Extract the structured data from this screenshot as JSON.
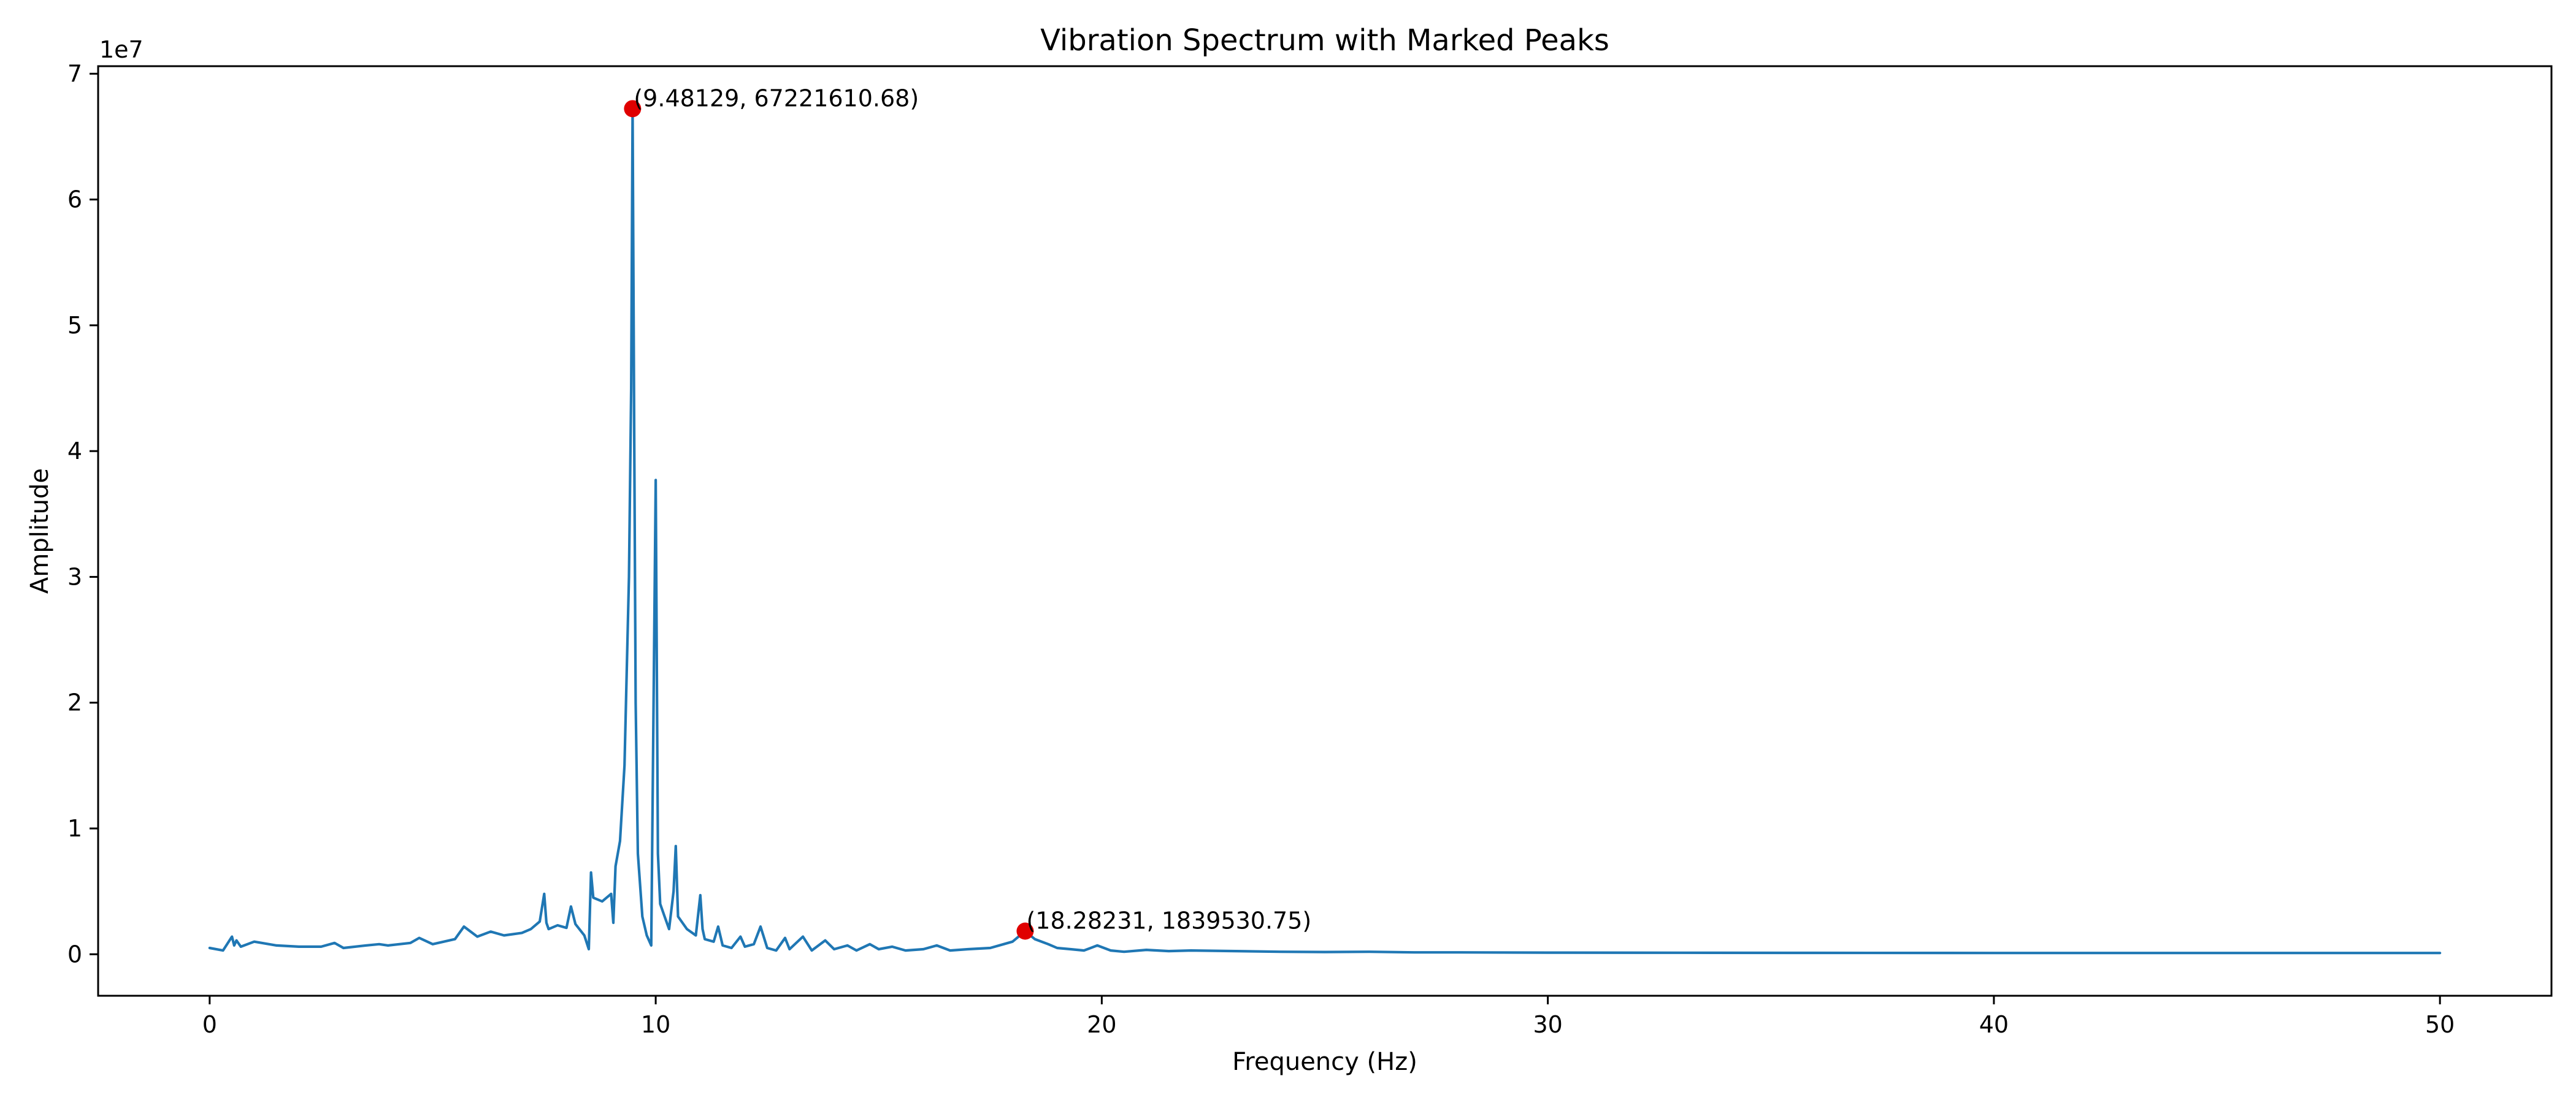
{
  "chart_data": {
    "type": "line",
    "title": "Vibration Spectrum with Marked Peaks",
    "xlabel": "Frequency (Hz)",
    "ylabel": "Amplitude",
    "xlim": [
      -2.5,
      52.5
    ],
    "ylim": [
      -3300000,
      70600000
    ],
    "y_offset_text": "1e7",
    "y_scale": 10000000,
    "x_ticks": [
      0,
      10,
      20,
      30,
      40,
      50
    ],
    "y_ticks": [
      0,
      10000000,
      20000000,
      30000000,
      40000000,
      50000000,
      60000000,
      70000000
    ],
    "x_tick_labels": [
      "0",
      "10",
      "20",
      "30",
      "40",
      "50"
    ],
    "y_tick_labels": [
      "0",
      "1",
      "2",
      "3",
      "4",
      "5",
      "6",
      "7"
    ],
    "grid": false,
    "line_color": "#1f77b4",
    "marker_color": "#e00000",
    "series": [
      {
        "x": [
          0,
          0.3,
          0.5,
          0.55,
          0.6,
          0.7,
          1.0,
          1.5,
          2.0,
          2.5,
          2.8,
          3.0,
          3.5,
          3.8,
          4.0,
          4.5,
          4.7,
          5.0,
          5.5,
          5.7,
          6.0,
          6.3,
          6.6,
          7.0,
          7.2,
          7.4,
          7.5,
          7.55,
          7.6,
          7.8,
          8.0,
          8.1,
          8.2,
          8.4,
          8.5,
          8.55,
          8.6,
          8.8,
          9.0,
          9.05,
          9.1,
          9.2,
          9.3,
          9.4,
          9.45,
          9.48129,
          9.52,
          9.55,
          9.6,
          9.7,
          9.8,
          9.9,
          10.0,
          10.05,
          10.1,
          10.2,
          10.3,
          10.4,
          10.45,
          10.5,
          10.7,
          10.9,
          11.0,
          11.05,
          11.1,
          11.3,
          11.4,
          11.5,
          11.7,
          11.9,
          12.0,
          12.2,
          12.35,
          12.5,
          12.7,
          12.9,
          13.0,
          13.3,
          13.5,
          13.8,
          14.0,
          14.3,
          14.5,
          14.8,
          15.0,
          15.3,
          15.6,
          16.0,
          16.3,
          16.6,
          17.0,
          17.5,
          17.8,
          18.0,
          18.28231,
          18.5,
          18.8,
          19.0,
          19.3,
          19.6,
          19.9,
          20.2,
          20.5,
          21.0,
          21.5,
          22.0,
          23.0,
          24.0,
          25.0,
          26.0,
          27.0,
          28.0,
          30.0,
          33.0,
          36.0,
          40.0,
          45.0,
          50.0
        ],
        "values": [
          500000,
          300000,
          1400000,
          700000,
          1100000,
          600000,
          1000000,
          700000,
          600000,
          600000,
          900000,
          500000,
          700000,
          800000,
          700000,
          900000,
          1300000,
          800000,
          1200000,
          2200000,
          1400000,
          1800000,
          1500000,
          1700000,
          2000000,
          2600000,
          4800000,
          2500000,
          2000000,
          2300000,
          2100000,
          3800000,
          2400000,
          1500000,
          400000,
          6500000,
          4500000,
          4200000,
          4800000,
          2500000,
          7000000,
          9000000,
          15000000,
          30000000,
          45000000,
          67221610.68,
          40000000,
          20000000,
          8000000,
          3000000,
          1500000,
          700000,
          37700000,
          8000000,
          4000000,
          3000000,
          2000000,
          5000000,
          8600000,
          3000000,
          2000000,
          1500000,
          4700000,
          2000000,
          1200000,
          1000000,
          2200000,
          700000,
          500000,
          1400000,
          600000,
          800000,
          2200000,
          500000,
          300000,
          1300000,
          400000,
          1400000,
          300000,
          1100000,
          400000,
          700000,
          300000,
          800000,
          400000,
          600000,
          300000,
          400000,
          700000,
          300000,
          400000,
          500000,
          800000,
          1000000,
          1839530.75,
          1200000,
          800000,
          500000,
          400000,
          300000,
          700000,
          300000,
          200000,
          350000,
          250000,
          300000,
          250000,
          200000,
          180000,
          200000,
          150000,
          150000,
          130000,
          120000,
          110000,
          100000,
          100000,
          100000
        ]
      }
    ],
    "marked_peaks": [
      {
        "x": 9.48129,
        "y": 67221610.68,
        "label": "(9.48129, 67221610.68)"
      },
      {
        "x": 18.28231,
        "y": 1839530.75,
        "label": "(18.28231, 1839530.75)"
      }
    ]
  }
}
